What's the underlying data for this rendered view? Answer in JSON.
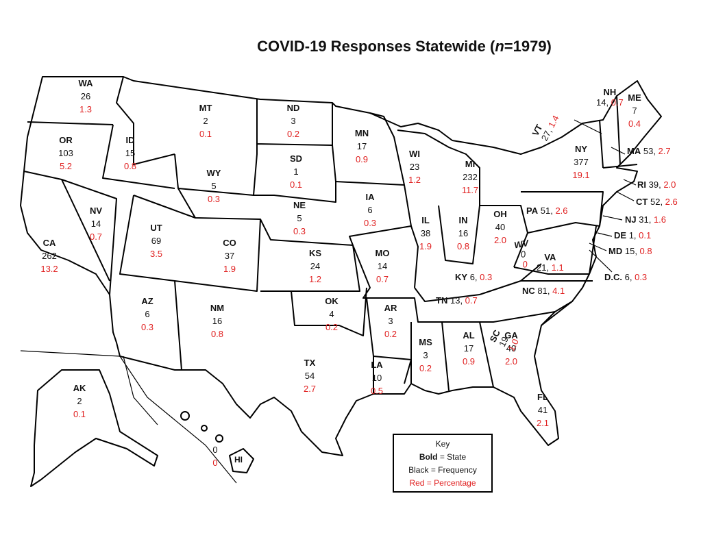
{
  "title": {
    "text": "COVID-19 Responses Statewide (",
    "n_symbol": "n",
    "n_value": "=1979)"
  },
  "states": [
    {
      "id": "WA",
      "freq": "26",
      "pct": "1.3"
    },
    {
      "id": "OR",
      "freq": "103",
      "pct": "5.2"
    },
    {
      "id": "CA",
      "freq": "262",
      "pct": "13.2"
    },
    {
      "id": "ID",
      "freq": "15",
      "pct": "0.8"
    },
    {
      "id": "NV",
      "freq": "14",
      "pct": "0.7"
    },
    {
      "id": "MT",
      "freq": "2",
      "pct": "0.1"
    },
    {
      "id": "WY",
      "freq": "5",
      "pct": "0.3"
    },
    {
      "id": "UT",
      "freq": "69",
      "pct": "3.5"
    },
    {
      "id": "CO",
      "freq": "37",
      "pct": "1.9"
    },
    {
      "id": "AZ",
      "freq": "6",
      "pct": "0.3"
    },
    {
      "id": "NM",
      "freq": "16",
      "pct": "0.8"
    },
    {
      "id": "ND",
      "freq": "3",
      "pct": "0.2"
    },
    {
      "id": "SD",
      "freq": "1",
      "pct": "0.1"
    },
    {
      "id": "NE",
      "freq": "5",
      "pct": "0.3"
    },
    {
      "id": "KS",
      "freq": "24",
      "pct": "1.2"
    },
    {
      "id": "OK",
      "freq": "4",
      "pct": "0.2"
    },
    {
      "id": "TX",
      "freq": "54",
      "pct": "2.7"
    },
    {
      "id": "MN",
      "freq": "17",
      "pct": "0.9"
    },
    {
      "id": "IA",
      "freq": "6",
      "pct": "0.3"
    },
    {
      "id": "MO",
      "freq": "14",
      "pct": "0.7"
    },
    {
      "id": "AR",
      "freq": "3",
      "pct": "0.2"
    },
    {
      "id": "LA",
      "freq": "10",
      "pct": "0.5"
    },
    {
      "id": "WI",
      "freq": "23",
      "pct": "1.2"
    },
    {
      "id": "IL",
      "freq": "38",
      "pct": "1.9"
    },
    {
      "id": "MI",
      "freq": "232",
      "pct": "11.7"
    },
    {
      "id": "IN",
      "freq": "16",
      "pct": "0.8"
    },
    {
      "id": "OH",
      "freq": "40",
      "pct": "2.0"
    },
    {
      "id": "MS",
      "freq": "3",
      "pct": "0.2"
    },
    {
      "id": "AL",
      "freq": "17",
      "pct": "0.9"
    },
    {
      "id": "GA",
      "freq": "40",
      "pct": "2.0"
    },
    {
      "id": "FL",
      "freq": "41",
      "pct": "2.1"
    },
    {
      "id": "NY",
      "freq": "377",
      "pct": "19.1"
    },
    {
      "id": "ME",
      "freq": "7",
      "pct": "0.4"
    },
    {
      "id": "AK",
      "freq": "2",
      "pct": "0.1"
    }
  ],
  "inline_states": [
    {
      "id": "NH",
      "freq": "14",
      "pct": "0.7"
    },
    {
      "id": "MA",
      "freq": "53",
      "pct": "2.7"
    },
    {
      "id": "RI",
      "freq": "39",
      "pct": "2.0"
    },
    {
      "id": "CT",
      "freq": "52",
      "pct": "2.6"
    },
    {
      "id": "NJ",
      "freq": "31",
      "pct": "1.6"
    },
    {
      "id": "DE",
      "freq": "1",
      "pct": "0.1"
    },
    {
      "id": "MD",
      "freq": "15",
      "pct": "0.8"
    },
    {
      "id": "D.C.",
      "freq": "6",
      "pct": "0.3"
    },
    {
      "id": "PA",
      "freq": "51",
      "pct": "2.6"
    },
    {
      "id": "VA",
      "freq": "21",
      "pct": "1.1"
    },
    {
      "id": "KY",
      "freq": "6",
      "pct": "0.3"
    },
    {
      "id": "TN",
      "freq": "13",
      "pct": "0.7"
    },
    {
      "id": "NC",
      "freq": "81",
      "pct": "4.1"
    }
  ],
  "rotated_states": [
    {
      "id": "VT",
      "freq": "27",
      "pct": "1.4"
    },
    {
      "id": "WV",
      "freq": "0",
      "pct": "0"
    },
    {
      "id": "SC",
      "freq": "19",
      "pct": "1.0"
    }
  ],
  "hawaii": {
    "id": "HI",
    "freq": "0",
    "pct": "0"
  },
  "key": {
    "title": "Key",
    "bold_word": "Bold",
    "bold_rest": " = State",
    "black_line": "Black = Frequency",
    "red_line": "Red = Percentage"
  },
  "colors": {
    "frequency": "#111111",
    "percentage": "#e02020",
    "border": "#000000"
  }
}
